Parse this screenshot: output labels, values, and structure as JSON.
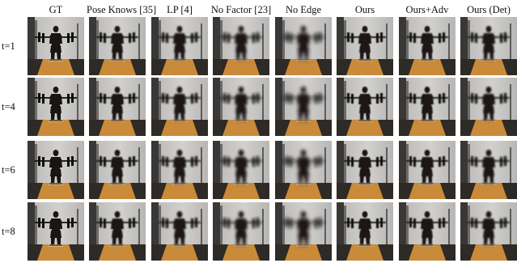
{
  "columns": [
    {
      "label": "GT",
      "blur": 0
    },
    {
      "label": "Pose Knows [35]",
      "blur": 0.7
    },
    {
      "label": "LP [4]",
      "blur": 1.1
    },
    {
      "label": "No Factor [23]",
      "blur": 1.6
    },
    {
      "label": "No Edge",
      "blur": 2.2
    },
    {
      "label": "Ours",
      "blur": 0.6
    },
    {
      "label": "Ours+Adv",
      "blur": 0.8
    },
    {
      "label": "Ours (Det)",
      "blur": 1.0
    }
  ],
  "rows": [
    {
      "label": "t=1"
    },
    {
      "label": "t=4"
    },
    {
      "label": "t=6"
    },
    {
      "label": "t=8"
    }
  ],
  "colors": {
    "wall": "#b7b6b4",
    "wall_light": "#d2d1cf",
    "floor_dark": "#2e2a26",
    "platform": "#c98a3a",
    "figure": "#1a1412",
    "barbell": "#141414",
    "plates": "#0d0d0d"
  }
}
